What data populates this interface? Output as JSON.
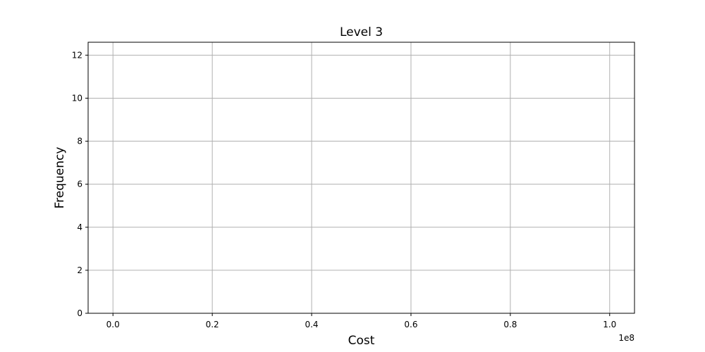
{
  "chart_data": {
    "type": "bar",
    "title": "Level 3",
    "xlabel": "Cost",
    "ylabel": "Frequency",
    "x_offset_label": "1e8",
    "xlim": [
      -0.05,
      1.05
    ],
    "ylim": [
      0,
      12.6
    ],
    "x_ticks": [
      0.0,
      0.2,
      0.4,
      0.6,
      0.8,
      1.0
    ],
    "x_tick_labels": [
      "0.0",
      "0.2",
      "0.4",
      "0.6",
      "0.8",
      "1.0"
    ],
    "y_ticks": [
      0,
      2,
      4,
      6,
      8,
      10,
      12
    ],
    "y_tick_labels": [
      "0",
      "2",
      "4",
      "6",
      "8",
      "10",
      "12"
    ],
    "grid": true,
    "series": [
      {
        "bins": [],
        "values": []
      }
    ]
  }
}
